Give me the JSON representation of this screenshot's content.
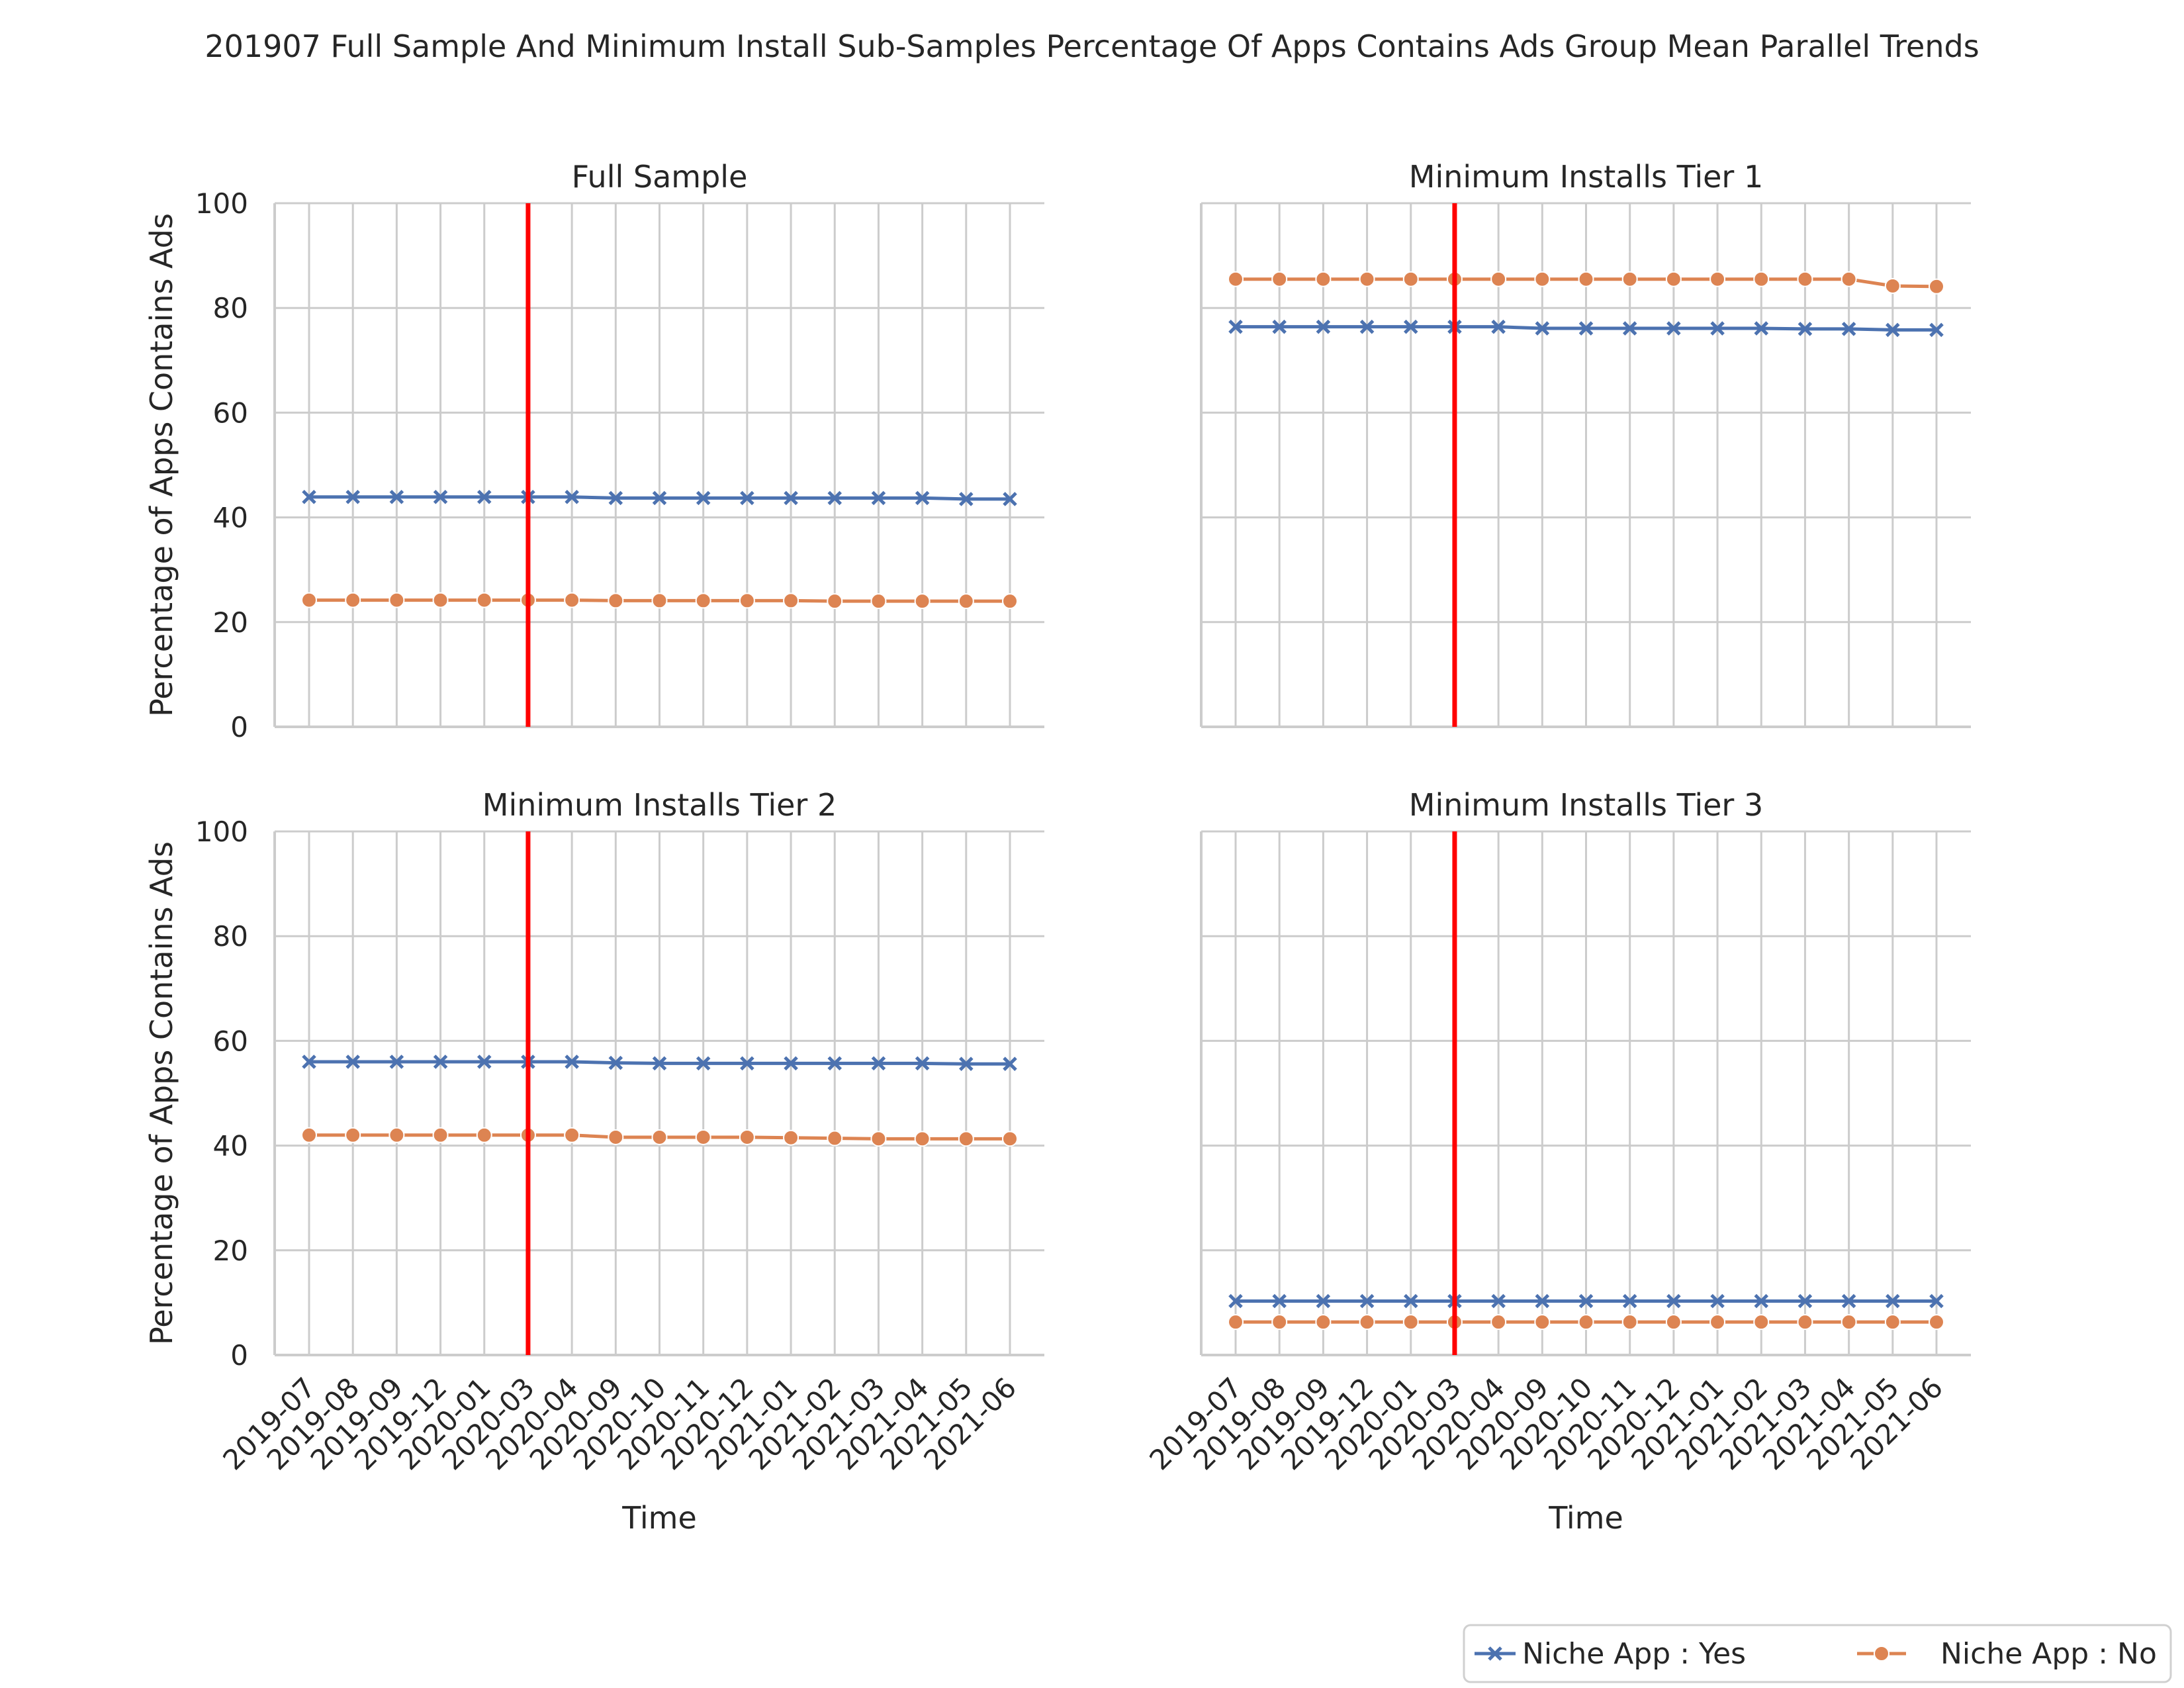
{
  "title": "201907 Full Sample And Minimum Install Sub-Samples Percentage Of Apps Contains Ads Group Mean Parallel Trends",
  "colors": {
    "niche_yes": "#4c72b0",
    "niche_no": "#dd8452",
    "event_line": "#ff0000",
    "grid": "#cccccc",
    "axis": "#cccccc"
  },
  "legend": {
    "placement": "bottom-right",
    "items": [
      {
        "label": "Niche App : Yes",
        "marker": "x",
        "series": "niche_yes"
      },
      {
        "label": "Niche App : No",
        "marker": "circle",
        "series": "niche_no"
      }
    ]
  },
  "chart_data": {
    "type": "line",
    "x": [
      "2019-07",
      "2019-08",
      "2019-09",
      "2019-12",
      "2020-01",
      "2020-03",
      "2020-04",
      "2020-09",
      "2020-10",
      "2020-11",
      "2020-12",
      "2021-01",
      "2021-02",
      "2021-03",
      "2021-04",
      "2021-05",
      "2021-06"
    ],
    "xlabel": "Time",
    "ylabel": "Percentage of Apps Contains Ads",
    "ylim": [
      0,
      100
    ],
    "yticks": [
      0,
      20,
      40,
      60,
      80,
      100
    ],
    "grid": true,
    "event_line_x": "2020-03",
    "panels": [
      {
        "title": "Full Sample",
        "series": [
          {
            "name": "Niche App : Yes",
            "key": "niche_yes",
            "values": [
              43.9,
              43.9,
              43.9,
              43.9,
              43.9,
              43.9,
              43.9,
              43.7,
              43.7,
              43.7,
              43.7,
              43.7,
              43.7,
              43.7,
              43.7,
              43.5,
              43.5
            ]
          },
          {
            "name": "Niche App : No",
            "key": "niche_no",
            "values": [
              24.2,
              24.2,
              24.2,
              24.2,
              24.2,
              24.2,
              24.2,
              24.1,
              24.1,
              24.1,
              24.1,
              24.1,
              24.0,
              24.0,
              24.0,
              24.0,
              24.0
            ]
          }
        ]
      },
      {
        "title": "Minimum Installs Tier 1",
        "series": [
          {
            "name": "Niche App : Yes",
            "key": "niche_yes",
            "values": [
              76.4,
              76.4,
              76.4,
              76.4,
              76.4,
              76.4,
              76.4,
              76.1,
              76.1,
              76.1,
              76.1,
              76.1,
              76.1,
              76.0,
              76.0,
              75.8,
              75.8
            ]
          },
          {
            "name": "Niche App : No",
            "key": "niche_no",
            "values": [
              85.5,
              85.5,
              85.5,
              85.5,
              85.5,
              85.5,
              85.5,
              85.5,
              85.5,
              85.5,
              85.5,
              85.5,
              85.5,
              85.5,
              85.5,
              84.2,
              84.1
            ]
          }
        ]
      },
      {
        "title": "Minimum Installs Tier 2",
        "series": [
          {
            "name": "Niche App : Yes",
            "key": "niche_yes",
            "values": [
              56.0,
              56.0,
              56.0,
              56.0,
              56.0,
              56.0,
              56.0,
              55.8,
              55.7,
              55.7,
              55.7,
              55.7,
              55.7,
              55.7,
              55.7,
              55.6,
              55.6
            ]
          },
          {
            "name": "Niche App : No",
            "key": "niche_no",
            "values": [
              42.0,
              42.0,
              42.0,
              42.0,
              42.0,
              42.0,
              42.0,
              41.6,
              41.6,
              41.6,
              41.6,
              41.5,
              41.4,
              41.3,
              41.3,
              41.3,
              41.3
            ]
          }
        ]
      },
      {
        "title": "Minimum Installs Tier 3",
        "series": [
          {
            "name": "Niche App : Yes",
            "key": "niche_yes",
            "values": [
              10.3,
              10.3,
              10.3,
              10.3,
              10.3,
              10.3,
              10.3,
              10.3,
              10.3,
              10.3,
              10.3,
              10.3,
              10.3,
              10.3,
              10.3,
              10.3,
              10.3
            ]
          },
          {
            "name": "Niche App : No",
            "key": "niche_no",
            "values": [
              6.3,
              6.3,
              6.3,
              6.3,
              6.3,
              6.3,
              6.3,
              6.3,
              6.3,
              6.3,
              6.3,
              6.3,
              6.3,
              6.3,
              6.3,
              6.3,
              6.3
            ]
          }
        ]
      }
    ]
  }
}
